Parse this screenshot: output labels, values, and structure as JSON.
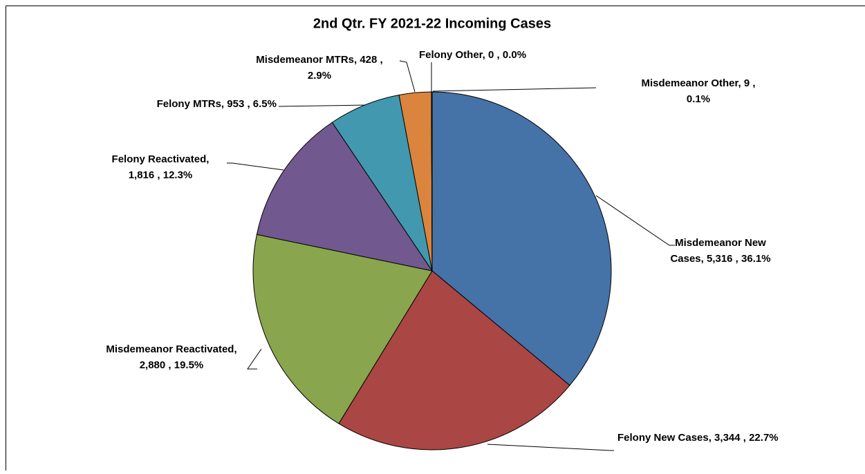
{
  "chart_data": {
    "type": "pie",
    "title": "2nd Qtr. FY 2021-22 Incoming Cases",
    "values": [
      5316,
      3344,
      2880,
      1816,
      953,
      428,
      0,
      9
    ],
    "labels": [
      [
        "Misdemeanor New",
        "Cases, 5,316 , 36.1%"
      ],
      [
        "Felony  New Cases, 3,344 , 22.7%"
      ],
      [
        "Misdemeanor Reactivated,",
        "2,880 , 19.5%"
      ],
      [
        "Felony  Reactivated,",
        "1,816 , 12.3%"
      ],
      [
        "Felony  MTRs, 953 , 6.5%"
      ],
      [
        "Misdemeanor MTRs, 428 ,",
        "2.9%"
      ],
      [
        "Felony  Other, 0 , 0.0%"
      ],
      [
        "Misdemeanor Other, 9 ,",
        "0.1%"
      ]
    ],
    "colors": [
      "#4572A7",
      "#AA4643",
      "#89A54E",
      "#71588F",
      "#4198AF",
      "#DB843D",
      "#93A9CF",
      "#D19392"
    ]
  }
}
